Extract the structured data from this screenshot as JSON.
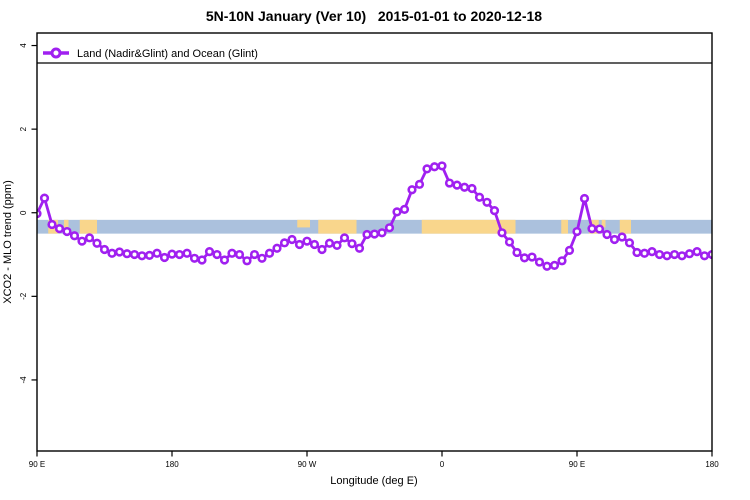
{
  "chart_data": {
    "type": "line",
    "title": "5N-10N January (Ver 10)   2015-01-01 to 2020-12-18",
    "xlabel": "Longitude (deg E)",
    "ylabel": "XCO2 - MLO trend (ppm)",
    "legend_label": "Land (Nadir&Glint) and Ocean (Glint)",
    "legend_position": "top-left full-width strip",
    "grid": false,
    "xlim": [
      90,
      540
    ],
    "ylim": [
      -5.7,
      4.3
    ],
    "x_ticks": {
      "positions": [
        90,
        180,
        270,
        360,
        450,
        540
      ],
      "labels": [
        "90 E",
        "180",
        "90 W",
        "0",
        "90 E",
        "180"
      ]
    },
    "y_ticks": {
      "positions": [
        -4,
        -2,
        0,
        2,
        4
      ],
      "labels": [
        "-4",
        "-2",
        "0",
        "2",
        "4"
      ]
    },
    "series": [
      {
        "name": "Land (Nadir&Glint) and Ocean (Glint)",
        "color": "#A020F0",
        "marker": "open-circle",
        "x": [
          90,
          95,
          100,
          105,
          110,
          115,
          120,
          125,
          130,
          135,
          140,
          145,
          150,
          155,
          160,
          165,
          170,
          175,
          180,
          185,
          190,
          195,
          200,
          205,
          210,
          215,
          220,
          225,
          230,
          235,
          240,
          245,
          250,
          255,
          260,
          265,
          270,
          275,
          280,
          285,
          290,
          295,
          300,
          305,
          310,
          315,
          320,
          325,
          330,
          335,
          340,
          345,
          350,
          355,
          360,
          365,
          370,
          375,
          380,
          385,
          390,
          395,
          400,
          405,
          410,
          415,
          420,
          425,
          430,
          435,
          440,
          445,
          450,
          455,
          460,
          465,
          470,
          475,
          480,
          485,
          490,
          495,
          500,
          505,
          510,
          515,
          520,
          525,
          530,
          535,
          540
        ],
        "y": [
          -0.02,
          0.35,
          -0.28,
          -0.38,
          -0.45,
          -0.55,
          -0.68,
          -0.6,
          -0.73,
          -0.88,
          -0.97,
          -0.94,
          -0.98,
          -1.0,
          -1.03,
          -1.02,
          -0.97,
          -1.07,
          -0.99,
          -1.0,
          -0.97,
          -1.09,
          -1.13,
          -0.93,
          -1.0,
          -1.13,
          -0.97,
          -1.0,
          -1.15,
          -1.0,
          -1.09,
          -0.97,
          -0.85,
          -0.72,
          -0.64,
          -0.76,
          -0.68,
          -0.76,
          -0.88,
          -0.73,
          -0.78,
          -0.6,
          -0.74,
          -0.85,
          -0.52,
          -0.51,
          -0.48,
          -0.36,
          0.02,
          0.08,
          0.55,
          0.68,
          1.05,
          1.1,
          1.12,
          0.71,
          0.66,
          0.61,
          0.58,
          0.37,
          0.25,
          0.05,
          -0.48,
          -0.7,
          -0.95,
          -1.08,
          -1.06,
          -1.18,
          -1.28,
          -1.26,
          -1.15,
          -0.9,
          -0.45,
          0.34,
          -0.38,
          -0.39,
          -0.52,
          -0.64,
          -0.58,
          -0.72,
          -0.95,
          -0.97,
          -0.93,
          -1.0,
          -1.03,
          -1.0,
          -1.03,
          -0.98,
          -0.93,
          -1.03,
          -1.0
        ]
      }
    ],
    "map_strip": {
      "meaning": "ocean-land strip of the 5N-10N latitude band",
      "y_range": [
        -0.17,
        -0.5
      ],
      "ocean_color": "#ABC1DD",
      "land_color": "#F9D68C",
      "land_segments_deg": [
        [
          97.5,
          104,
          "full"
        ],
        [
          108,
          111,
          "partial"
        ],
        [
          118.5,
          130,
          "full"
        ],
        [
          263.5,
          272,
          "partial"
        ],
        [
          277.5,
          303,
          "full"
        ],
        [
          346.5,
          409,
          "full"
        ],
        [
          439.5,
          444,
          "full"
        ],
        [
          458,
          464.5,
          "full"
        ],
        [
          466.5,
          469,
          "partial"
        ],
        [
          478.5,
          486,
          "full"
        ]
      ]
    }
  }
}
